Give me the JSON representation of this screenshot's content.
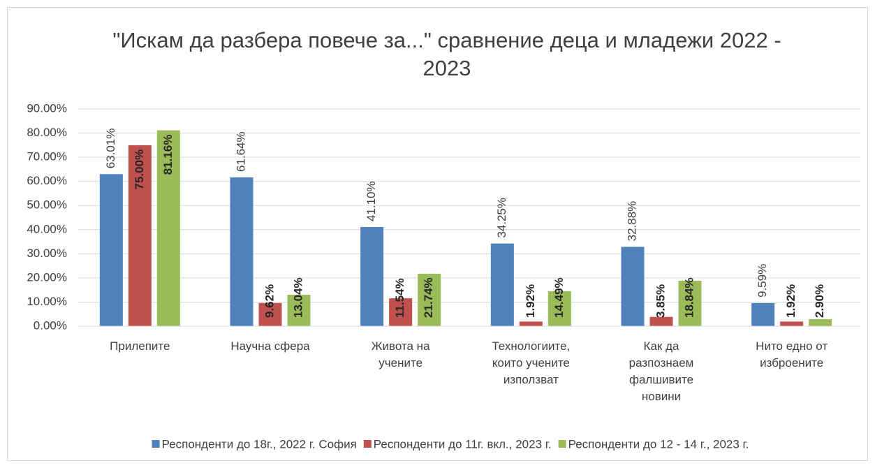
{
  "chart_data": {
    "type": "bar",
    "title": "\"Искам да разбера повече за...\" сравнение деца и младежи 2022 - 2023",
    "categories": [
      "Прилепите",
      "Научна сфера",
      "Живота на учените",
      "Технологиите, които учените използват",
      "Как да разпознаем фалшивите новини",
      "Нито едно от изброените"
    ],
    "series": [
      {
        "name": "Респонденти до 18г., 2022 г. София",
        "color": "#4f81bd",
        "values": [
          63.01,
          61.64,
          41.1,
          34.25,
          32.88,
          9.59
        ],
        "value_labels": [
          "63.01%",
          "61.64%",
          "41.10%",
          "34.25%",
          "32.88%",
          "9.59%"
        ]
      },
      {
        "name": "Респонденти до 11г. вкл., 2023 г.",
        "color": "#c0504d",
        "values": [
          75.0,
          9.62,
          11.54,
          1.92,
          3.85,
          1.92
        ],
        "value_labels": [
          "75.00%",
          "9.62%",
          "11.54%",
          "1.92%",
          "3.85%",
          "1.92%"
        ]
      },
      {
        "name": "Респонденти до 12 - 14 г., 2023 г.",
        "color": "#9bbb59",
        "values": [
          81.16,
          13.04,
          21.74,
          14.49,
          18.84,
          2.9
        ],
        "value_labels": [
          "81.16%",
          "13.04%",
          "21.74%",
          "14.49%",
          "18.84%",
          "2.90%"
        ]
      }
    ],
    "ylim": [
      0,
      90
    ],
    "yticks": [
      {
        "value": 0,
        "label": "0.00%"
      },
      {
        "value": 10,
        "label": "10.00%"
      },
      {
        "value": 20,
        "label": "20.00%"
      },
      {
        "value": 30,
        "label": "30.00%"
      },
      {
        "value": 40,
        "label": "40.00%"
      },
      {
        "value": 50,
        "label": "50.00%"
      },
      {
        "value": 60,
        "label": "60.00%"
      },
      {
        "value": 70,
        "label": "70.00%"
      },
      {
        "value": 80,
        "label": "80.00%"
      },
      {
        "value": 90,
        "label": "90.00%"
      }
    ],
    "grid": true,
    "legend": "bottom"
  }
}
